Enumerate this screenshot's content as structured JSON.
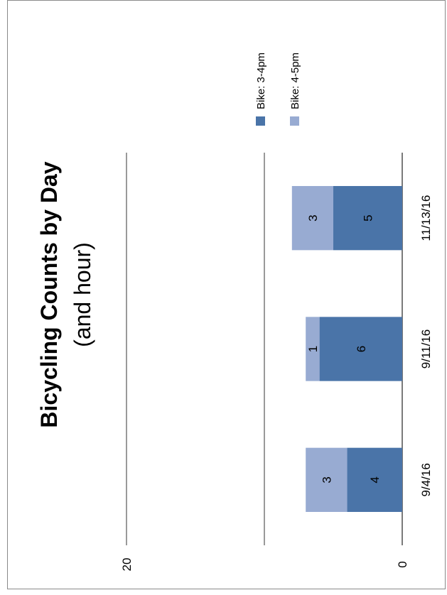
{
  "chart_data": {
    "type": "bar",
    "stacked": true,
    "orientation": "rotated-90-clockwise",
    "title": "Bicycling Counts by Day",
    "subtitle": "(and hour)",
    "categories": [
      "9/4/16",
      "9/11/16",
      "11/13/16"
    ],
    "series": [
      {
        "name": "Bike: 3-4pm",
        "values": [
          4,
          6,
          5
        ],
        "color": "#4a74a8"
      },
      {
        "name": "Bike: 4-5pm",
        "values": [
          3,
          1,
          3
        ],
        "color": "#98abd2"
      }
    ],
    "ylim": [
      0,
      20
    ],
    "yticks": [
      "0",
      "20"
    ],
    "grid": true,
    "legend": "top-right"
  }
}
